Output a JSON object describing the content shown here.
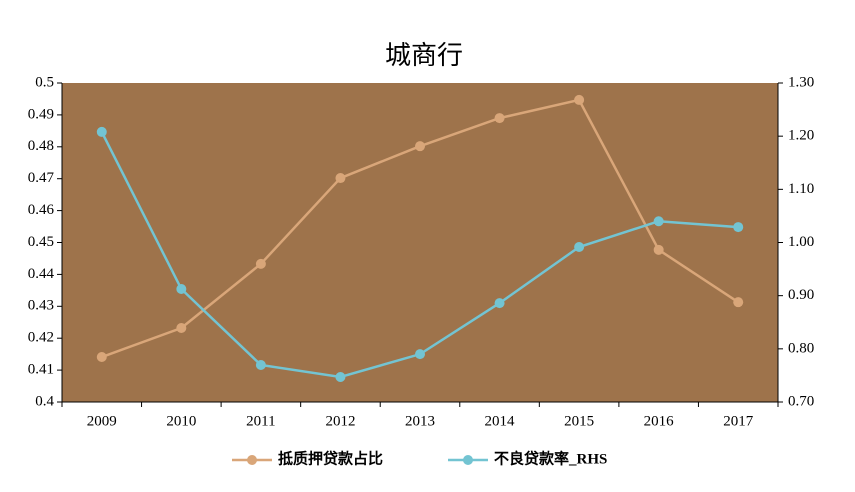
{
  "chart_data": {
    "type": "line",
    "title": "城商行",
    "categories": [
      "2009",
      "2010",
      "2011",
      "2012",
      "2013",
      "2014",
      "2015",
      "2016",
      "2017"
    ],
    "series": [
      {
        "name": "抵质押贷款占比",
        "color": "#d9a679",
        "values": [
          0.4141,
          0.4232,
          0.4433,
          0.4702,
          0.4802,
          0.489,
          0.4947,
          0.4477,
          0.4313
        ]
      },
      {
        "name": "不良贷款率_RHS",
        "color": "#73c4d2",
        "axis": "y2",
        "values": [
          1.208,
          0.9125,
          0.7696,
          0.747,
          0.79,
          0.886,
          0.9915,
          1.04,
          1.029
        ]
      }
    ],
    "ylim": [
      0.4,
      0.5
    ],
    "yticks": [
      0.4,
      0.41,
      0.42,
      0.43,
      0.44,
      0.45,
      0.46,
      0.47,
      0.48,
      0.49,
      0.5
    ],
    "y2lim": [
      0.7,
      1.3
    ],
    "y2ticks": [
      {
        "value": 0.7,
        "label": "0.70"
      },
      {
        "value": 0.8,
        "label": "0.80"
      },
      {
        "value": 0.9,
        "label": "0.90"
      },
      {
        "value": 1.0,
        "label": "1.00"
      },
      {
        "value": 1.1,
        "label": "1.10"
      },
      {
        "value": 1.2,
        "label": "1.20"
      },
      {
        "value": 1.3,
        "label": "1.30"
      }
    ],
    "plot_background": "#9e734b",
    "legend": "bottom"
  }
}
